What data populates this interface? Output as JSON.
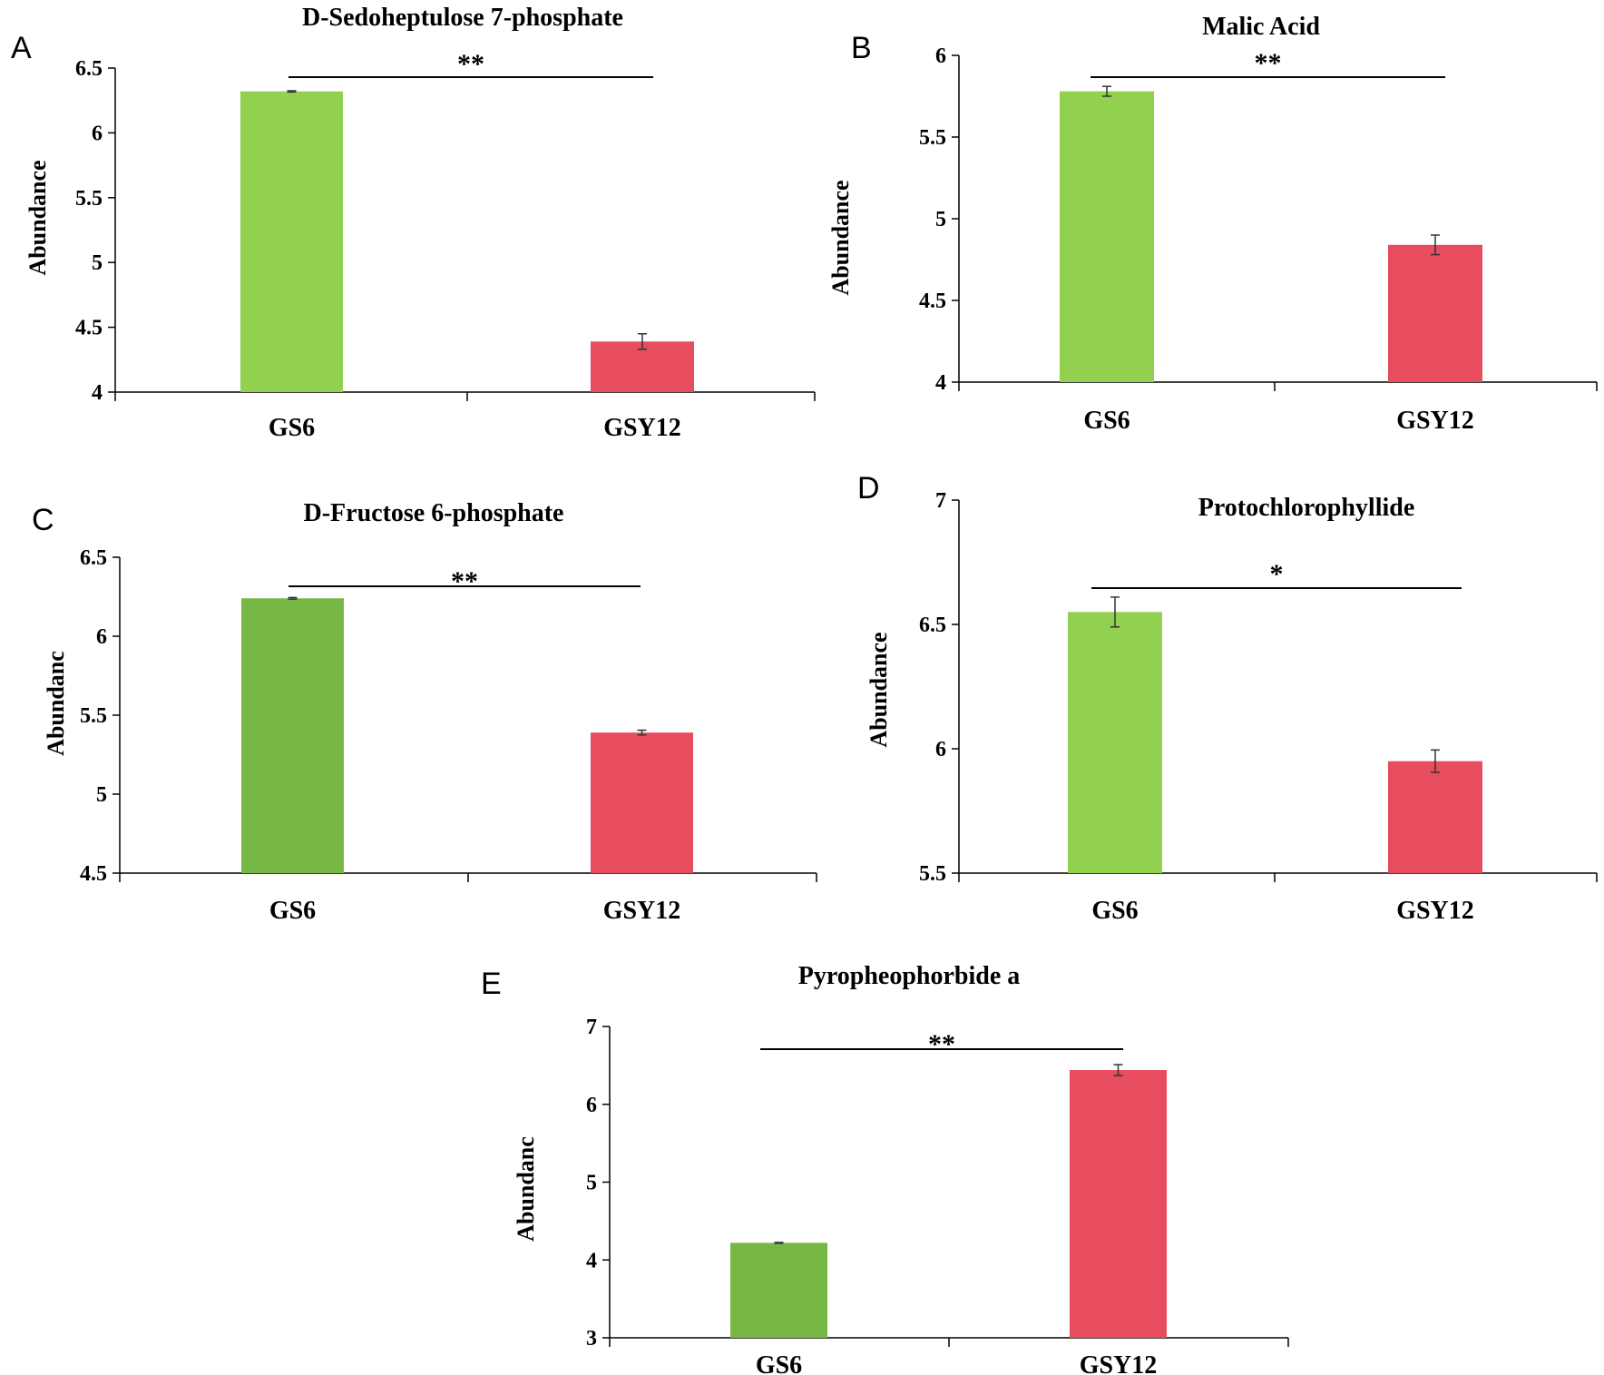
{
  "chart_data": [
    {
      "panel": "A",
      "type": "bar",
      "title": "D-Sedoheptulose 7-phosphate",
      "ylabel": "Abundance",
      "xlabel": "",
      "categories": [
        "GS6",
        "GSY12"
      ],
      "values": [
        6.32,
        4.39
      ],
      "errors": [
        0.005,
        0.06
      ],
      "ylim": [
        4,
        6.5
      ],
      "yticks": [
        "4",
        "4.5",
        "5",
        "5.5",
        "6",
        "6.5"
      ],
      "colors": [
        "#92d050",
        "#e84c5f"
      ],
      "significance": "**"
    },
    {
      "panel": "B",
      "type": "bar",
      "title": "Malic Acid",
      "ylabel": "Abundance",
      "xlabel": "",
      "categories": [
        "GS6",
        "GSY12"
      ],
      "values": [
        5.78,
        4.84
      ],
      "errors": [
        0.03,
        0.06
      ],
      "ylim": [
        4,
        6
      ],
      "yticks": [
        "4",
        "4.5",
        "5",
        "5.5",
        "6"
      ],
      "colors": [
        "#92d050",
        "#e84c5f"
      ],
      "significance": "**"
    },
    {
      "panel": "C",
      "type": "bar",
      "title": "D-Fructose 6-phosphate",
      "ylabel": "Abundanc",
      "xlabel": "",
      "categories": [
        "GS6",
        "GSY12"
      ],
      "values": [
        6.24,
        5.39
      ],
      "errors": [
        0.005,
        0.015
      ],
      "ylim": [
        4.5,
        6.5
      ],
      "yticks": [
        "4.5",
        "5",
        "5.5",
        "6",
        "6.5"
      ],
      "colors": [
        "#76b843",
        "#e84c5f"
      ],
      "significance": "**"
    },
    {
      "panel": "D",
      "type": "bar",
      "title": "Protochlorophyllide",
      "ylabel": "Abundance",
      "xlabel": "",
      "categories": [
        "GS6",
        "GSY12"
      ],
      "values": [
        6.55,
        5.95
      ],
      "errors": [
        0.06,
        0.045
      ],
      "ylim": [
        5.5,
        7
      ],
      "yticks": [
        "5.5",
        "6",
        "6.5",
        "7"
      ],
      "colors": [
        "#92d050",
        "#e84c5f"
      ],
      "significance": "*"
    },
    {
      "panel": "E",
      "type": "bar",
      "title": "Pyropheophorbide a",
      "ylabel": "Abundanc",
      "xlabel": "",
      "categories": [
        "GS6",
        "GSY12"
      ],
      "values": [
        4.22,
        6.44
      ],
      "errors": [
        0.005,
        0.07
      ],
      "ylim": [
        3,
        7
      ],
      "yticks": [
        "3",
        "4",
        "5",
        "6",
        "7"
      ],
      "colors": [
        "#76b843",
        "#e84c5f"
      ],
      "significance": "**"
    }
  ]
}
